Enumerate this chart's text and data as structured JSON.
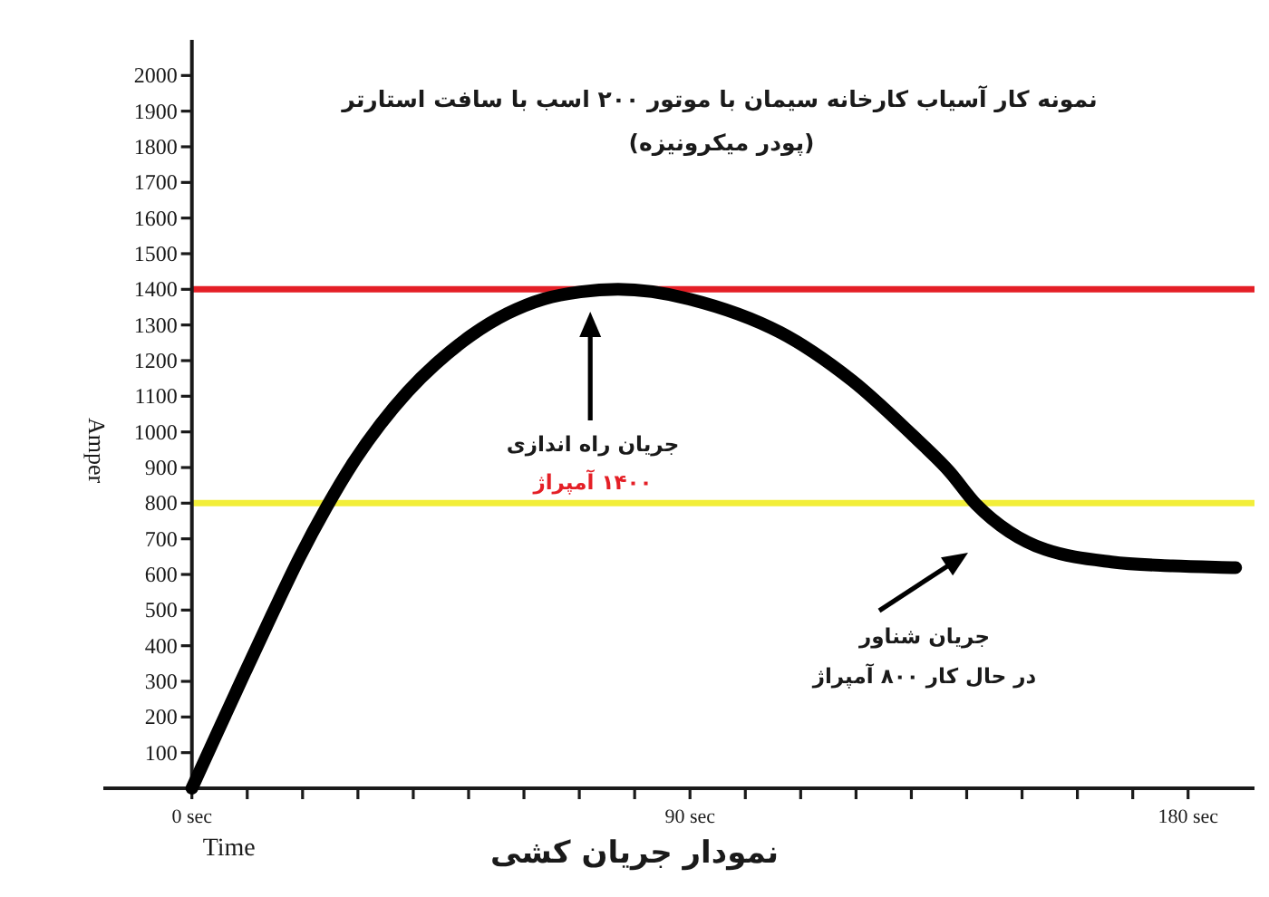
{
  "chart_data": {
    "type": "line",
    "title": "نمونه کار آسیاب کارخانه سیمان با موتور ۲۰۰ اسب با سافت استارتر",
    "subtitle": "(پودر میکرونیزه)",
    "xlabel": "Time",
    "ylabel": "Amper",
    "x": [
      0,
      4.65,
      9.6,
      14.5,
      19.4,
      24.3,
      29.2,
      34.1,
      39,
      44,
      50.5,
      57,
      63.6,
      70.2,
      77,
      89.8,
      106.2,
      119.3,
      130.2,
      136.8,
      141.7,
      147.7,
      154.2,
      166.2,
      177.2,
      188.6
    ],
    "series": [
      {
        "color": "#000000",
        "values": [
          0,
          158,
          325,
          488,
          646,
          788,
          915,
          1022,
          1113,
          1190,
          1271,
          1332,
          1373,
          1393,
          1400,
          1373,
          1280,
          1144,
          991,
          890,
          797,
          720,
          670,
          635,
          624,
          619
        ]
      }
    ],
    "xlim": [
      -16,
      192
    ],
    "ylim": [
      0,
      2100
    ],
    "xticks": [
      {
        "value": 0,
        "label": "0 sec"
      },
      {
        "value": 10,
        "label": null
      },
      {
        "value": 20,
        "label": null
      },
      {
        "value": 30,
        "label": null
      },
      {
        "value": 40,
        "label": null
      },
      {
        "value": 50,
        "label": null
      },
      {
        "value": 60,
        "label": null
      },
      {
        "value": 70,
        "label": null
      },
      {
        "value": 80,
        "label": null
      },
      {
        "value": 90,
        "label": "90 sec"
      },
      {
        "value": 100,
        "label": null
      },
      {
        "value": 110,
        "label": null
      },
      {
        "value": 120,
        "label": null
      },
      {
        "value": 130,
        "label": null
      },
      {
        "value": 140,
        "label": null
      },
      {
        "value": 150,
        "label": null
      },
      {
        "value": 160,
        "label": null
      },
      {
        "value": 170,
        "label": null
      },
      {
        "value": 180,
        "label": "180 sec"
      }
    ],
    "yticks": [
      100,
      200,
      300,
      400,
      500,
      600,
      700,
      800,
      900,
      1000,
      1100,
      1200,
      1300,
      1400,
      1500,
      1600,
      1700,
      1800,
      1900,
      2000
    ],
    "ref_lines": [
      {
        "axis": "y",
        "value": 1400,
        "label": "۱۴۰۰ آمپراژ",
        "color": "#e41f26"
      },
      {
        "axis": "y",
        "value": 800,
        "color": "#f2ee39"
      }
    ],
    "annotations": [
      "جریان راه اندازی",
      "جریان شناور\nدر حال کار ۸۰۰ آمپراژ",
      "نمودار جریان کشی"
    ],
    "line_style": "solid"
  }
}
